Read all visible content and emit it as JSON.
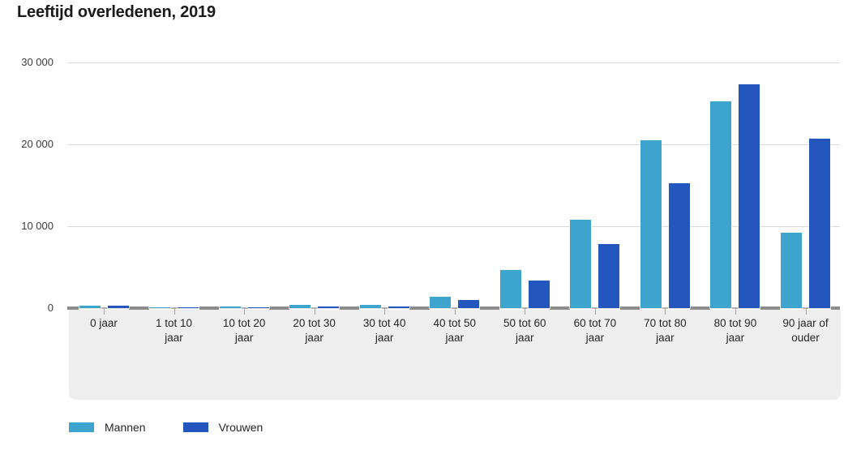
{
  "chart_data": {
    "type": "bar",
    "title": "Leeftijd overledenen, 2019",
    "categories": [
      "0 jaar",
      "1 tot 10 jaar",
      "10 tot 20 jaar",
      "20 tot 30 jaar",
      "30 tot 40 jaar",
      "40 tot 50 jaar",
      "50 tot 60 jaar",
      "60 tot 70 jaar",
      "70 tot 80 jaar",
      "80 tot 90 jaar",
      "90 jaar of ouder"
    ],
    "category_line_breaks": [
      [
        "0 jaar"
      ],
      [
        "1 tot 10",
        "jaar"
      ],
      [
        "10 tot 20",
        "jaar"
      ],
      [
        "20 tot 30",
        "jaar"
      ],
      [
        "30 tot 40",
        "jaar"
      ],
      [
        "40 tot 50",
        "jaar"
      ],
      [
        "50 tot 60",
        "jaar"
      ],
      [
        "60 tot 70",
        "jaar"
      ],
      [
        "70 tot 80",
        "jaar"
      ],
      [
        "80 tot 90",
        "jaar"
      ],
      [
        "90 jaar of",
        "ouder"
      ]
    ],
    "series": [
      {
        "name": "Mannen",
        "color": "#3da4ce",
        "values": [
          330,
          110,
          150,
          400,
          430,
          1380,
          4650,
          10800,
          20500,
          25200,
          9200
        ]
      },
      {
        "name": "Vrouwen",
        "color": "#2357bd",
        "values": [
          260,
          90,
          110,
          180,
          240,
          960,
          3350,
          7850,
          15250,
          27300,
          20650
        ]
      }
    ],
    "xlabel": "",
    "ylabel": "",
    "ylim": [
      0,
      30000
    ],
    "y_ticks": [
      {
        "value": 30000,
        "label": "30 000"
      },
      {
        "value": 20000,
        "label": "20 000"
      },
      {
        "value": 10000,
        "label": "10 000"
      },
      {
        "value": 0,
        "label": "0"
      }
    ],
    "grid": true,
    "legend_position": "bottom-left"
  },
  "legend": {
    "items": [
      {
        "label": "Mannen",
        "color": "#3da4ce"
      },
      {
        "label": "Vrouwen",
        "color": "#2357bd"
      }
    ]
  },
  "branding": {
    "logo_icon": "cbs-logo",
    "logo_color": "#8f8f8f"
  },
  "colors": {
    "mannen": "#3da4ce",
    "vrouwen": "#2357bd",
    "gridline": "#d9d9d9",
    "axis_line": "#8c8c8c",
    "plot_background": "#eeeeee",
    "title_text": "#1a1a1a"
  }
}
